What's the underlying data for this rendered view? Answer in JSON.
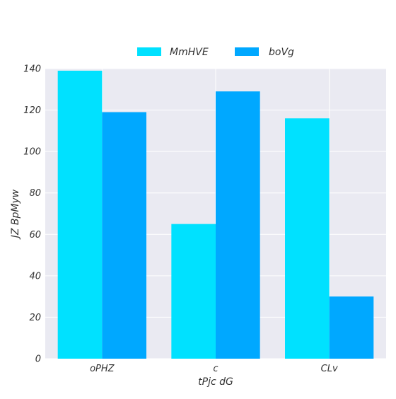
{
  "chart_data": {
    "type": "bar",
    "title": "",
    "xlabel": "tPjc dG",
    "ylabel": "JZ BpMyw",
    "categories": [
      "oPHZ",
      "c",
      "CLv"
    ],
    "series": [
      {
        "name": "MmHVE",
        "values": [
          139,
          65,
          116
        ],
        "color": "#00E1FF"
      },
      {
        "name": "boVg",
        "values": [
          119,
          129,
          30
        ],
        "color": "#00A8FF"
      }
    ],
    "ylim": [
      0,
      140
    ],
    "yticks": [
      0,
      20,
      40,
      60,
      80,
      100,
      120,
      140
    ],
    "grid": true,
    "legend_position": "top-center",
    "background": "#EAEAF2",
    "grid_color": "#FFFFFF"
  }
}
